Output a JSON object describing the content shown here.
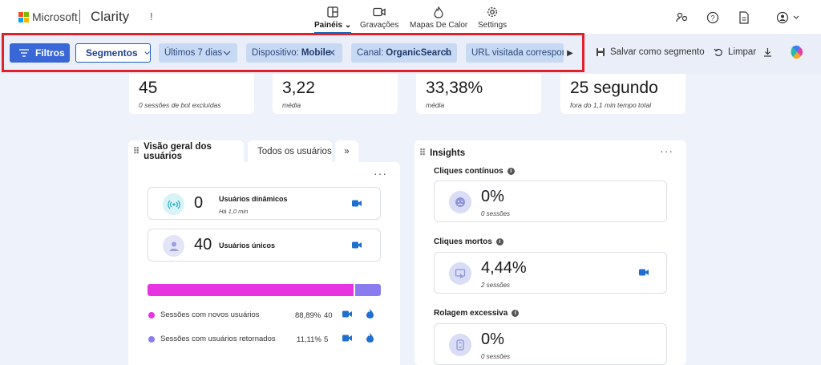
{
  "header": {
    "brand_ms": "Microsoft",
    "brand_app": "Clarity",
    "brand_mark": "!",
    "nav": [
      {
        "label": "Painéis",
        "icon": "dashboard-icon",
        "active": true
      },
      {
        "label": "Gravações",
        "icon": "video-icon",
        "active": false
      },
      {
        "label": "Mapas De Calor",
        "icon": "flame-icon",
        "active": false
      },
      {
        "label": "Settings",
        "icon": "gear-icon",
        "active": false
      }
    ]
  },
  "toolbar": {
    "filters_label": "Filtros",
    "segments_label": "Segmentos",
    "chips": [
      {
        "label": "Últimos 7 dias",
        "value": "",
        "removable": false
      },
      {
        "label": "Dispositivo:",
        "value": "Mobile",
        "removable": true
      },
      {
        "label": "Canal:",
        "value": "OrganicSearch",
        "removable": true
      },
      {
        "label": "URL visitada corresponde",
        "value": "",
        "removable": false
      }
    ],
    "save_segment_label": "Salvar como segmento",
    "clear_label": "Limpar"
  },
  "metrics": [
    {
      "value": "45",
      "sub": "0 sessões de bot excluídas"
    },
    {
      "value": "3,22",
      "sub": "média"
    },
    {
      "value": "33,38%",
      "sub": "média"
    },
    {
      "value": "25 segundo",
      "sub": "fora do 1,1 min tempo total"
    }
  ],
  "users_panel": {
    "tab_active": "Visão geral dos usuários",
    "tab_other": "Todos os usuários",
    "tab_more": "»",
    "dynamic": {
      "count": "0",
      "label": "Usuários dinâmicos",
      "sub": "Há 1,0 min"
    },
    "unique": {
      "count": "40",
      "label": "Usuários únicos"
    },
    "split": {
      "new_fraction": 0.8889,
      "returning_fraction": 0.1111
    },
    "legend": [
      {
        "label": "Sessões com novos usuários",
        "pct": "88,89%",
        "count": "40",
        "color": "#e534e0"
      },
      {
        "label": "Sessões com usuários retornados",
        "pct": "11,11%",
        "count": "5",
        "color": "#8a7cf0"
      }
    ]
  },
  "insights_panel": {
    "title": "Insights",
    "items": [
      {
        "title": "Cliques contínuos",
        "pct": "0%",
        "sessions": "0 sessões",
        "has_video": false
      },
      {
        "title": "Cliques mortos",
        "pct": "4,44%",
        "sessions": "2 sessões",
        "has_video": true
      },
      {
        "title": "Rolagem excessiva",
        "pct": "0%",
        "sessions": "0 sessões",
        "has_video": false
      }
    ]
  },
  "colors": {
    "accent": "#3a67d6",
    "video": "#1f6fd0",
    "highlight": "#e0202a"
  }
}
